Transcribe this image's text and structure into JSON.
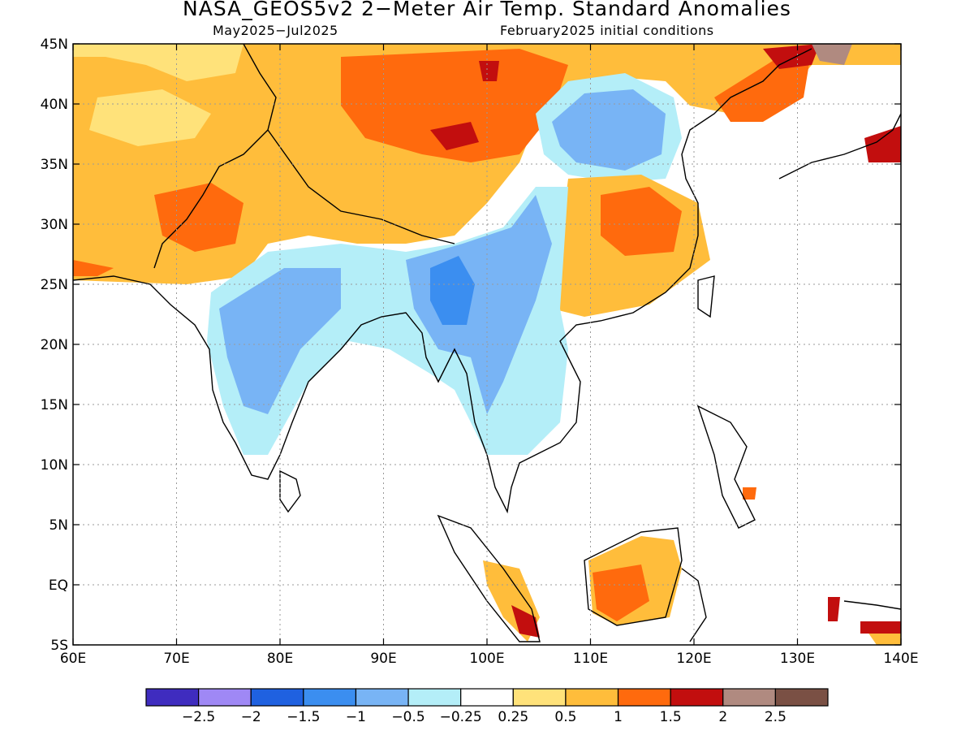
{
  "title": "NASA_GEOS5v2 2−Meter Air Temp. Standard Anomalies",
  "subtitle_left": "May2025−Jul2025",
  "subtitle_right": "February2025 initial conditions",
  "map": {
    "lon_range": [
      60,
      140
    ],
    "lat_range": [
      -5,
      45
    ],
    "lon_ticks": [
      "60E",
      "70E",
      "80E",
      "90E",
      "100E",
      "110E",
      "120E",
      "130E",
      "140E"
    ],
    "lat_ticks": [
      "45N",
      "40N",
      "35N",
      "30N",
      "25N",
      "20N",
      "15N",
      "10N",
      "5N",
      "EQ",
      "5S"
    ],
    "gridlines": "dotted"
  },
  "colorbar": {
    "colors": [
      "#3f2cbf",
      "#9f88f5",
      "#1f61e0",
      "#3b8ef0",
      "#78b4f5",
      "#b4eef8",
      "#ffffff",
      "#ffe27a",
      "#ffbd3b",
      "#ff6a0d",
      "#c20e0e",
      "#b08a80",
      "#7a5044"
    ],
    "labels": [
      "−2.5",
      "−2",
      "−1.5",
      "−1",
      "−0.5",
      "−0.25",
      "0.25",
      "0.5",
      "1",
      "1.5",
      "2",
      "2.5"
    ]
  },
  "regions": [
    {
      "name": "india-cool-anomaly",
      "category": "−0.5"
    },
    {
      "name": "myanmar-cool-anomaly",
      "category": "−1.5"
    },
    {
      "name": "north-china-cool-anomaly",
      "category": "−1"
    },
    {
      "name": "tibet-warm-anomaly",
      "category": "1"
    },
    {
      "name": "southeast-china-warm-anomaly",
      "category": "1.5"
    },
    {
      "name": "borneo-warm-anomaly",
      "category": "1.5"
    }
  ]
}
